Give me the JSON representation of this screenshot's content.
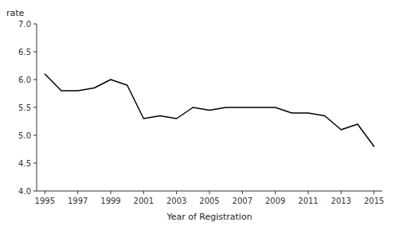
{
  "chart_data": {
    "type": "line",
    "x": [
      1995,
      1996,
      1997,
      1998,
      1999,
      2000,
      2001,
      2002,
      2003,
      2004,
      2005,
      2006,
      2007,
      2008,
      2009,
      2010,
      2011,
      2012,
      2013,
      2014,
      2015
    ],
    "values": [
      6.1,
      5.8,
      5.8,
      5.85,
      6.0,
      5.9,
      5.3,
      5.35,
      5.3,
      5.5,
      5.45,
      5.5,
      5.5,
      5.5,
      5.5,
      5.4,
      5.4,
      5.35,
      5.1,
      5.2,
      4.8
    ],
    "color": "#000000",
    "x_label": "Year of Registration",
    "y_label": "rate",
    "xlim": [
      1994.5,
      2015.5
    ],
    "ylim": [
      4.0,
      7.0
    ],
    "xticks": [
      1995,
      1997,
      1999,
      2001,
      2003,
      2005,
      2007,
      2009,
      2011,
      2013,
      2015
    ],
    "yticks": [
      {
        "value": 4.0,
        "label": "4.0"
      },
      4.5,
      {
        "value": 5.0,
        "label": "5.0"
      },
      5.5,
      {
        "value": 6.0,
        "label": "6.0"
      },
      6.5,
      {
        "value": 7.0,
        "label": "7.0"
      }
    ],
    "grid": false
  }
}
